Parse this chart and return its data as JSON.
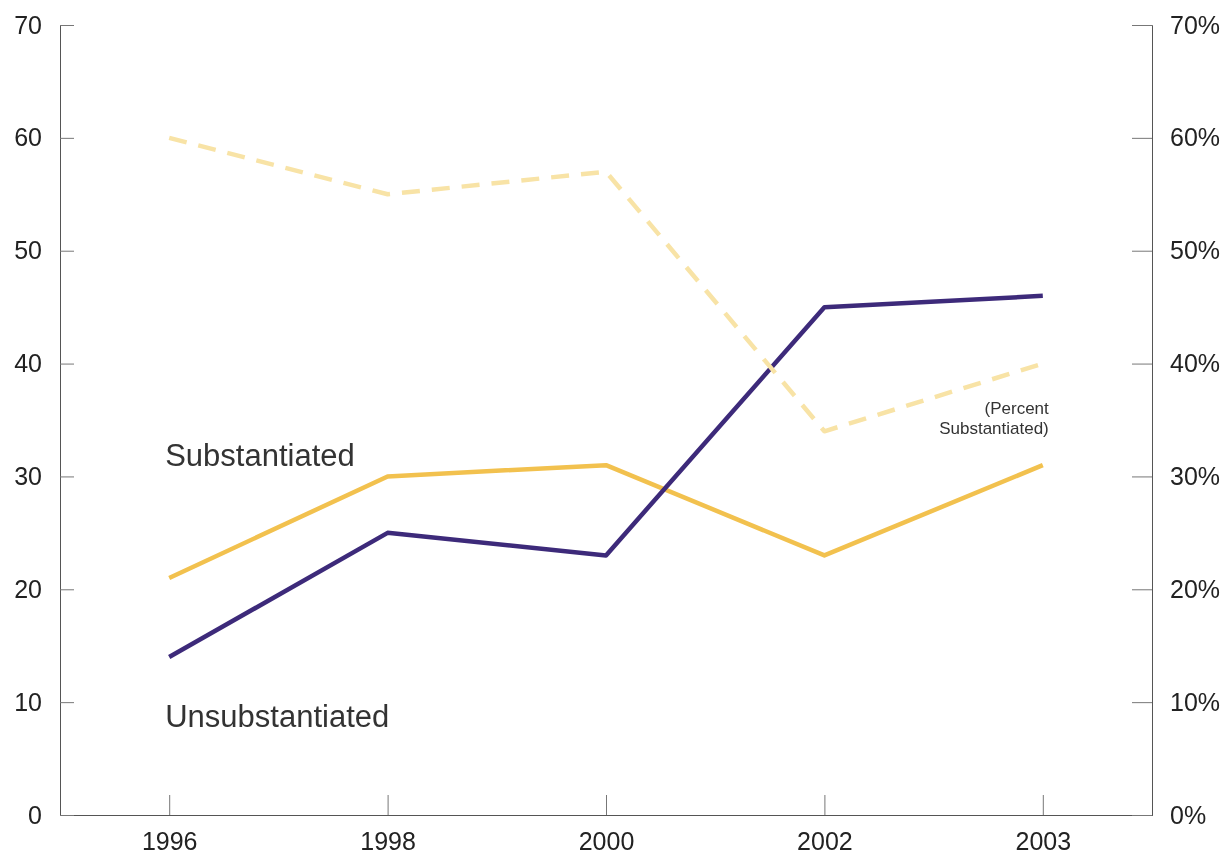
{
  "chart_data": {
    "type": "line",
    "categories": [
      "1996",
      "1998",
      "2000",
      "2002",
      "2003"
    ],
    "ylim": [
      0,
      70
    ],
    "yticks": [
      0,
      10,
      20,
      30,
      40,
      50,
      60,
      70
    ],
    "y2lim": [
      0,
      70
    ],
    "y2ticks": [
      {
        "value": 0,
        "label": "0%"
      },
      {
        "value": 10,
        "label": "10%"
      },
      {
        "value": 20,
        "label": "20%"
      },
      {
        "value": 30,
        "label": "30%"
      },
      {
        "value": 40,
        "label": "40%"
      },
      {
        "value": 50,
        "label": "50%"
      },
      {
        "value": 60,
        "label": "60%"
      },
      {
        "value": 70,
        "label": "70%"
      }
    ],
    "series": [
      {
        "name": "Substantiated",
        "color": "#f2c14e",
        "values": [
          21,
          30,
          31,
          23,
          31
        ],
        "line_style": "solid"
      },
      {
        "name": "Unsubstantiated",
        "color": "#3d2a7a",
        "values": [
          14,
          25,
          23,
          45,
          46
        ],
        "line_style": "solid"
      },
      {
        "name": "(Percent Substantiated)",
        "color": "#f8e3a6",
        "values": [
          60,
          55,
          57,
          34,
          40
        ],
        "axis": "y2",
        "line_style": "dashed"
      }
    ],
    "marker": "none"
  }
}
